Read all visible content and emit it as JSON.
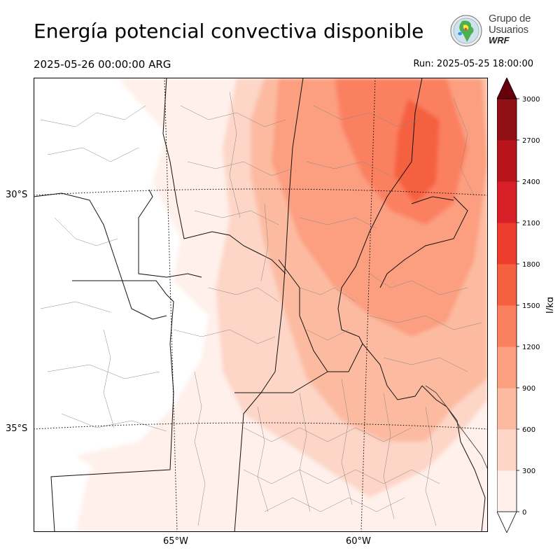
{
  "header": {
    "title": "Energía potencial convectiva disponible",
    "valid_time": "2025-05-26 00:00:00 ARG",
    "run_time": "Run: 2025-05-25 18:00:00"
  },
  "logo": {
    "line1": "Grupo de",
    "line2": "Usuarios",
    "line3": "WRF",
    "icon": "south-america-globe-icon"
  },
  "map": {
    "lat_labels": [
      "30°S",
      "35°S"
    ],
    "lon_labels": [
      "65°W",
      "60°W"
    ],
    "field": "CAPE"
  },
  "colorbar": {
    "unit": "J/kg",
    "ticks": [
      "0",
      "300",
      "600",
      "900",
      "1200",
      "1500",
      "1800",
      "2100",
      "2400",
      "2700",
      "3000"
    ],
    "colors": [
      "#fff0eb",
      "#fdd6c7",
      "#fcbba1",
      "#fc9f80",
      "#fb8060",
      "#f5613f",
      "#ef3d2d",
      "#d72027",
      "#b7151b",
      "#911015"
    ],
    "extend_high_color": "#67000d",
    "extend_low_color": "#ffffff"
  }
}
